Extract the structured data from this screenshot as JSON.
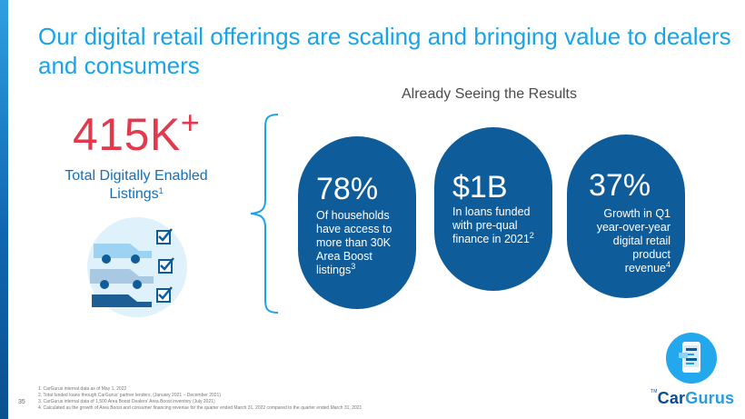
{
  "title": "Our digital retail offerings are scaling and bringing value to dealers and consumers",
  "subheading": "Already Seeing the Results",
  "main_stat": {
    "value": "415K",
    "suffix": "+",
    "label": "Total Digitally Enabled Listings",
    "footnote_ref": "1"
  },
  "bubbles": [
    {
      "value": "78%",
      "text": "Of households have access to more than 30K Area Boost listings",
      "footnote_ref": "3"
    },
    {
      "value": "$1B",
      "text": "In loans funded with pre-qual finance in 2021",
      "footnote_ref": "2"
    },
    {
      "value": "37%",
      "text": "Growth in Q1 year-over-year digital retail product revenue",
      "footnote_ref": "4"
    }
  ],
  "footnotes": [
    "1. CarGurus internal data as of May 1, 2022",
    "2. Total funded loans through CarGurus' partner lenders, (January 2021 – December 2021)",
    "3. CarGurus internal data of 1,500 Area Boost Dealers' Area Boost inventory (July 2021)",
    "4. Calculated as the growth of Area Boost and consumer financing revenue for the quarter ended March 31, 2022 compared to the quarter ended March 31, 2021"
  ],
  "page_number": "35",
  "logo": {
    "part1": "Car",
    "part2": "Gurus",
    "tm": "TM"
  },
  "colors": {
    "title": "#1aa3e8",
    "stat": "#e23a4c",
    "bubble": "#0f5c9a",
    "label": "#1470b8"
  },
  "icons": [
    "car-listings-icon",
    "phone-app-icon"
  ]
}
